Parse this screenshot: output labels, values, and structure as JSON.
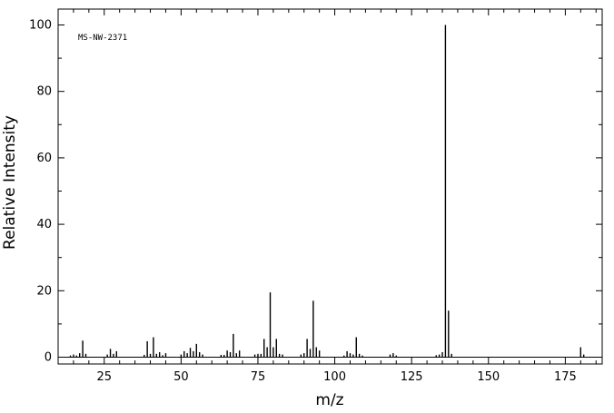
{
  "chart_data": {
    "type": "bar",
    "title": "",
    "annotation": "MS-NW-2371",
    "xlabel": "m/z",
    "ylabel": "Relative Intensity",
    "xlim": [
      10,
      187
    ],
    "ylim": [
      0,
      105
    ],
    "xticks": [
      25,
      50,
      75,
      100,
      125,
      150,
      175
    ],
    "yticks": [
      0,
      20,
      40,
      60,
      80,
      100
    ],
    "grid": false,
    "legend": "none",
    "series": [
      {
        "x": [
          14,
          15,
          16,
          17,
          18,
          19,
          26,
          27,
          28,
          29,
          38,
          39,
          40,
          41,
          42,
          43,
          44,
          45,
          50,
          51,
          52,
          53,
          54,
          55,
          56,
          57,
          63,
          64,
          65,
          66,
          67,
          68,
          69,
          74,
          75,
          76,
          77,
          78,
          79,
          80,
          81,
          82,
          83,
          89,
          90,
          91,
          92,
          93,
          94,
          95,
          103,
          104,
          105,
          106,
          107,
          108,
          109,
          118,
          119,
          120,
          133,
          134,
          135,
          136,
          137,
          138,
          180,
          181
        ],
        "y": [
          0.5,
          0.8,
          0.5,
          1.2,
          5.0,
          1.0,
          0.8,
          2.5,
          1.0,
          1.8,
          0.7,
          4.8,
          1.0,
          6.0,
          1.0,
          1.5,
          0.6,
          1.2,
          0.8,
          1.8,
          1.2,
          2.8,
          1.8,
          4.0,
          1.5,
          0.8,
          0.7,
          0.7,
          2.0,
          1.5,
          7.0,
          1.2,
          2.0,
          0.8,
          1.0,
          1.0,
          5.5,
          3.0,
          19.5,
          3.0,
          5.5,
          1.0,
          0.8,
          0.8,
          1.2,
          5.5,
          2.5,
          17.0,
          3.0,
          2.0,
          0.5,
          1.8,
          1.2,
          0.8,
          6.0,
          1.0,
          0.5,
          0.8,
          1.2,
          0.5,
          0.6,
          0.8,
          1.5,
          100,
          14.0,
          1.0,
          3.0,
          0.8
        ]
      }
    ]
  }
}
